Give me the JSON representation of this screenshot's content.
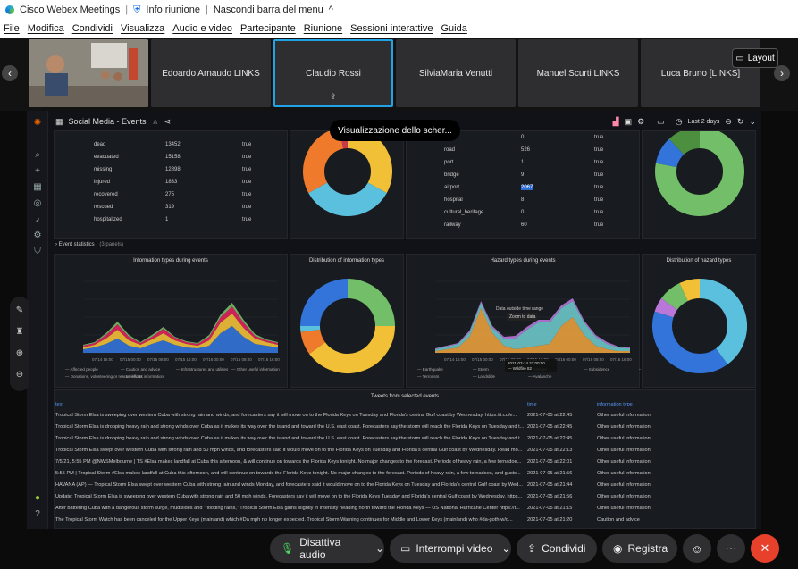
{
  "titlebar": {
    "app": "Cisco Webex Meetings",
    "info": "Info riunione",
    "hide": "Nascondi barra del menu"
  },
  "menu": [
    "File",
    "Modifica",
    "Condividi",
    "Visualizza",
    "Audio e video",
    "Partecipante",
    "Riunione",
    "Sessioni interattive",
    "Guida"
  ],
  "participants": [
    "Edoardo Arnaudo LINKS",
    "Claudio Rossi",
    "SilviaMaria Venutti",
    "Manuel Scurti LINKS",
    "Luca Bruno [LINKS]"
  ],
  "layout_label": "Layout",
  "share_banner": "Visualizzazione dello scher...",
  "dashboard": {
    "title": "Social Media - Events",
    "time_range": "Last 2 days"
  },
  "people_table": [
    [
      "dead",
      "13452",
      "true"
    ],
    [
      "evacuated",
      "15158",
      "true"
    ],
    [
      "missing",
      "12898",
      "true"
    ],
    [
      "injured",
      "1833",
      "true"
    ],
    [
      "recovered",
      "275",
      "true"
    ],
    [
      "rescued",
      "319",
      "true"
    ],
    [
      "hospitalized",
      "1",
      "true"
    ]
  ],
  "infra_table": [
    [
      "",
      "0",
      "true"
    ],
    [
      "road",
      "526",
      "true"
    ],
    [
      "port",
      "1",
      "true"
    ],
    [
      "bridge",
      "9",
      "true"
    ],
    [
      "airport",
      "2067",
      "true"
    ],
    [
      "hospital",
      "8",
      "true"
    ],
    [
      "cultural_heritage",
      "0",
      "true"
    ],
    [
      "railway",
      "60",
      "true"
    ]
  ],
  "section_title": "Event statistics",
  "section_count": "(3 panels)",
  "panels": {
    "info_types": "Information types during events",
    "dist_info": "Distribution of information types",
    "hazard_types": "Hazard types during events",
    "dist_hazard": "Distribution of hazard types"
  },
  "info_x_ticks": [
    "07/14 16:00",
    "07/15 00:00",
    "07/15 08:00",
    "07/15 16:00",
    "07/16 00:00",
    "07/16 08:00",
    "07/16 16:00"
  ],
  "info_legend": [
    "Affected people",
    "Caution and advice",
    "Infrastructures and utilities",
    "Other useful information",
    "Donations, volunteering or rescue efforts",
    "Irrelevant information"
  ],
  "hazard_x_ticks": [
    "07/14 16:00",
    "07/15 00:00",
    "07/15 08:00",
    "07/15 16:00",
    "07/16 00:00",
    "07/16 08:00",
    "07/16 16:00"
  ],
  "hazard_legend": [
    "Earthquake",
    "Storm",
    "Wildfire",
    "Subsidence",
    "Temperature anomaly",
    "Terrorism",
    "Landslide",
    "Avalanche"
  ],
  "tooltip": {
    "line1": "Data outside time range",
    "line2": "Zoom to data"
  },
  "hover": {
    "time": "2021-07-14 22:00:00",
    "label": "Wildfire",
    "value": "82"
  },
  "tweets_title": "Tweets from selected events",
  "tweets_cols": [
    "text",
    "time",
    "information type"
  ],
  "tweets": [
    [
      "Tropical Storm Elsa is sweeping over western Cuba with strong rain and winds, and forecasters say it will move on to the Florida Keys on Tuesday and Florida's central Gulf coast by Wednesday. https://t.co/e...",
      "2021-07-05 at 22:45",
      "Other useful information"
    ],
    [
      "Tropical Storm Elsa is dropping heavy rain and strong winds over Cuba as it makes its way over the island and toward the U.S. east coast. Forecasters say the storm will reach the Florida Keys on Tuesday and t...",
      "2021-07-05 at 22:45",
      "Other useful information"
    ],
    [
      "Tropical Storm Elsa is dropping heavy rain and strong winds over Cuba as it makes its way over the island and toward the U.S. east coast. Forecasters say the storm will reach the Florida Keys on Tuesday and t...",
      "2021-07-05 at 22:45",
      "Other useful information"
    ],
    [
      "Tropical Storm Elsa swept over western Cuba with strong rain and 50 mph winds, and forecasters said it would move on to the Florida Keys on Tuesday and Florida's central Gulf coast by Wednesday. Read mo...",
      "2021-07-05 at 22:13",
      "Other useful information"
    ],
    [
      "7/5/21, 5:55 PM @NWSMelbourne | TS #Elsa makes landfall at Cuba this afternoon, & will continue on towards the Florida Keys tonight. No major changes to the forecast. Periods of heavy rain, a few tornadoe...",
      "2021-07-05 at 22:01",
      "Other useful information"
    ],
    [
      "5:55 PM | Tropical Storm #Elsa makes landfall at Cuba this afternoon, and will continue on towards the Florida Keys tonight. No major changes to the forecast. Periods of heavy rain, a few tornadoes, and gusts...",
      "2021-07-05 at 21:56",
      "Other useful information"
    ],
    [
      "HAVANA (AP) — Tropical Storm Elsa swept over western Cuba with strong rain and winds Monday, and forecasters said it would move on to the Florida Keys on Tuesday and Florida's central Gulf coast by Wed...",
      "2021-07-05 at 21:44",
      "Other useful information"
    ],
    [
      "Update: Tropical Storm Elsa is sweeping over western Cuba with strong rain and 50 mph winds. Forecasters say it will move on to the Florida Keys Tuesday and Florida's central Gulf coast by Wednesday. https...",
      "2021-07-05 at 21:56",
      "Other useful information"
    ],
    [
      "After battering Cuba with a dangerous storm surge, mudslides and \"flooding rains,\" Tropical Storm Elsa gains slightly in intensity heading north toward the Florida Keys — US National Hurricane Center https://t...",
      "2021-07-05 at 21:15",
      "Other useful information"
    ],
    [
      "The Tropical Storm Watch has been canceled for the Upper Keys (mainland) which #Da mph no longer expected. Tropical Storm Warning continues for Middle and Lower Keys (mainland) who #da-goth-w/d...",
      "2021-07-05 at 21:20",
      "Caution and advice"
    ]
  ],
  "controls": {
    "audio": "Disattiva audio",
    "video": "Interrompi video",
    "share": "Condividi",
    "record": "Registra"
  }
}
